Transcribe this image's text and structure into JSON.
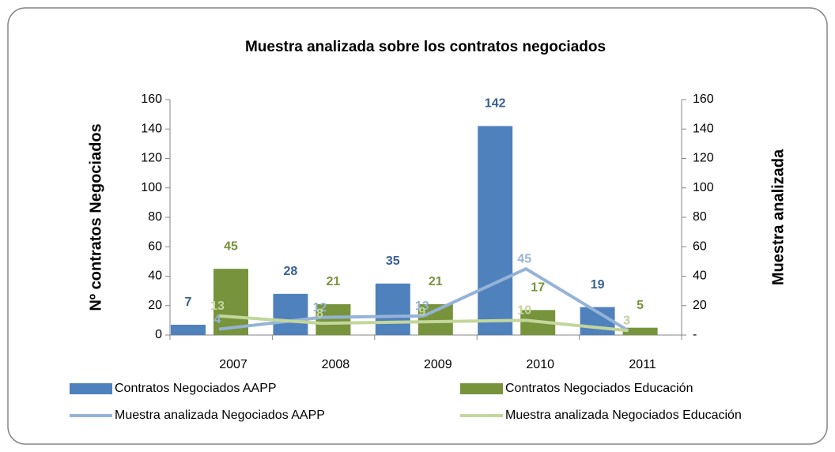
{
  "chart_data": {
    "type": "bar-line",
    "title": "Muestra analizada sobre los contratos negociados",
    "ylabel": "Nº  contratos Negociados",
    "y2label": "Muestra analizada",
    "categories": [
      "2007",
      "2008",
      "2009",
      "2010",
      "2011"
    ],
    "ylim": [
      0,
      160
    ],
    "yticks": [
      0,
      20,
      40,
      60,
      80,
      100,
      120,
      140,
      160
    ],
    "y2lim": [
      0,
      160
    ],
    "y2ticks": [
      {
        "value": 0,
        "label": "-"
      },
      20,
      40,
      60,
      80,
      100,
      120,
      140,
      160
    ],
    "grid": false,
    "legend": "bottom",
    "series": [
      {
        "name": "Contratos Negociados AAPP",
        "kind": "bar",
        "color": "#4f81bd",
        "label_color": "#376092",
        "values": [
          7,
          28,
          35,
          142,
          19
        ]
      },
      {
        "name": "Contratos Negociados Educación",
        "kind": "bar",
        "color": "#77933c",
        "label_color": "#77933c",
        "values": [
          45,
          21,
          21,
          17,
          5
        ]
      },
      {
        "name": "Muestra analizada Negociados AAPP",
        "kind": "line",
        "axis": "y2",
        "color": "#95b3d7",
        "label_color": "#95b3d7",
        "values": [
          4,
          12,
          13,
          45,
          3
        ]
      },
      {
        "name": "Muestra analizada Negociados Educación",
        "kind": "line",
        "axis": "y2",
        "color": "#c3d69b",
        "label_color": "#c3d69b",
        "values": [
          13,
          8,
          9,
          10,
          3
        ]
      }
    ]
  }
}
